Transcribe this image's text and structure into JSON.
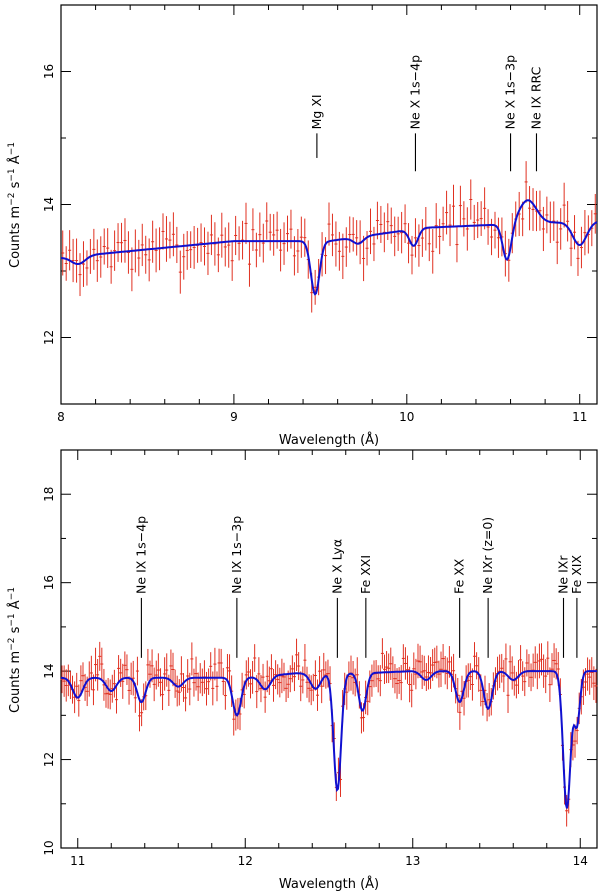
{
  "chart_data": [
    {
      "type": "line",
      "xlabel": "Wavelength (Å)",
      "ylabel_parts": {
        "counts": "Counts m",
        "m_exp": "−2",
        "s": " s",
        "s_exp": "−1",
        "a": " Å",
        "a_exp": "−1"
      },
      "xlim": [
        8.0,
        11.1
      ],
      "ylim": [
        11.0,
        17.0
      ],
      "xticks": [
        8,
        9,
        10,
        11
      ],
      "xtick_labels": [
        "8",
        "9",
        "10",
        "11"
      ],
      "yticks": [
        12,
        14,
        16
      ],
      "ytick_labels": [
        "12",
        "14",
        "16"
      ],
      "continuum": {
        "base": [
          [
            8.0,
            13.2
          ],
          [
            9.0,
            13.45
          ],
          [
            9.55,
            13.45
          ],
          [
            10.1,
            13.65
          ],
          [
            10.55,
            13.7
          ],
          [
            11.1,
            13.75
          ]
        ]
      },
      "absorption_features": [
        {
          "center": 8.1,
          "depth": 0.12,
          "width": 0.04
        },
        {
          "center": 9.47,
          "depth": 0.8,
          "width": 0.025
        },
        {
          "center": 9.72,
          "depth": 0.1,
          "width": 0.03
        },
        {
          "center": 10.04,
          "depth": 0.25,
          "width": 0.025
        },
        {
          "center": 10.58,
          "depth": 0.55,
          "width": 0.025
        },
        {
          "center": 11.0,
          "depth": 0.35,
          "width": 0.04
        }
      ],
      "emission_features": [
        {
          "center": 10.7,
          "height": 0.35,
          "width": 0.05
        }
      ],
      "labels": [
        {
          "text": "Mg XI",
          "x": 9.48,
          "top_y": 14.7,
          "base_y": 15.1
        },
        {
          "text": "Ne X 1s−4p",
          "x": 10.05,
          "top_y": 14.5,
          "base_y": 15.1
        },
        {
          "text": "Ne X 1s−3p",
          "x": 10.6,
          "top_y": 14.5,
          "base_y": 15.1
        },
        {
          "text": "Ne IX RRC",
          "x": 10.75,
          "top_y": 14.5,
          "base_y": 15.1
        }
      ],
      "data_points": {
        "step": 0.02,
        "seed": 7,
        "noise": 0.22,
        "err": 0.3
      }
    },
    {
      "type": "line",
      "xlabel": "Wavelength (Å)",
      "ylabel_parts": {
        "counts": "Counts m",
        "m_exp": "−2",
        "s": " s",
        "s_exp": "−1",
        "a": " Å",
        "a_exp": "−1"
      },
      "xlim": [
        10.9,
        14.1
      ],
      "ylim": [
        10.0,
        19.0
      ],
      "xticks": [
        11,
        12,
        13,
        14
      ],
      "xtick_labels": [
        "11",
        "12",
        "13",
        "14"
      ],
      "yticks": [
        10,
        12,
        14,
        16,
        18
      ],
      "ytick_labels": [
        "10",
        "12",
        "14",
        "16",
        "18"
      ],
      "continuum": {
        "base": [
          [
            10.9,
            13.85
          ],
          [
            12.0,
            13.85
          ],
          [
            12.3,
            13.95
          ],
          [
            12.7,
            13.95
          ],
          [
            13.0,
            14.0
          ],
          [
            14.1,
            14.0
          ]
        ]
      },
      "absorption_features": [
        {
          "center": 11.0,
          "depth": 0.45,
          "width": 0.03
        },
        {
          "center": 11.2,
          "depth": 0.3,
          "width": 0.03
        },
        {
          "center": 11.38,
          "depth": 0.55,
          "width": 0.025
        },
        {
          "center": 11.6,
          "depth": 0.2,
          "width": 0.03
        },
        {
          "center": 11.95,
          "depth": 0.85,
          "width": 0.025
        },
        {
          "center": 12.12,
          "depth": 0.3,
          "width": 0.03
        },
        {
          "center": 12.42,
          "depth": 0.35,
          "width": 0.03
        },
        {
          "center": 12.55,
          "depth": 2.65,
          "width": 0.022
        },
        {
          "center": 12.7,
          "depth": 0.85,
          "width": 0.022
        },
        {
          "center": 13.08,
          "depth": 0.2,
          "width": 0.03
        },
        {
          "center": 13.28,
          "depth": 0.7,
          "width": 0.025
        },
        {
          "center": 13.45,
          "depth": 0.85,
          "width": 0.025
        },
        {
          "center": 13.6,
          "depth": 0.2,
          "width": 0.03
        },
        {
          "center": 13.92,
          "depth": 3.1,
          "width": 0.022
        },
        {
          "center": 13.98,
          "depth": 1.2,
          "width": 0.018
        }
      ],
      "emission_features": [],
      "labels": [
        {
          "text": "Ne IX 1s−4p",
          "x": 11.38,
          "top_y": 14.3,
          "base_y": 15.7
        },
        {
          "text": "Ne IX 1s−3p",
          "x": 11.95,
          "top_y": 14.3,
          "base_y": 15.7
        },
        {
          "text": "Ne X Lyα",
          "x": 12.55,
          "top_y": 14.3,
          "base_y": 15.7
        },
        {
          "text": "Fe XXI",
          "x": 12.72,
          "top_y": 14.3,
          "base_y": 15.7
        },
        {
          "text": "Fe XX",
          "x": 13.28,
          "top_y": 14.3,
          "base_y": 15.7
        },
        {
          "text": "Ne IXr (z=0)",
          "x": 13.45,
          "top_y": 14.3,
          "base_y": 15.7
        },
        {
          "text": "Ne IXr",
          "x": 13.9,
          "top_y": 14.3,
          "base_y": 15.7
        },
        {
          "text": "Fe XIX",
          "x": 13.98,
          "top_y": 14.3,
          "base_y": 15.7
        }
      ],
      "data_points": {
        "step": 0.0125,
        "seed": 13,
        "noise": 0.3,
        "err": 0.35
      }
    }
  ]
}
